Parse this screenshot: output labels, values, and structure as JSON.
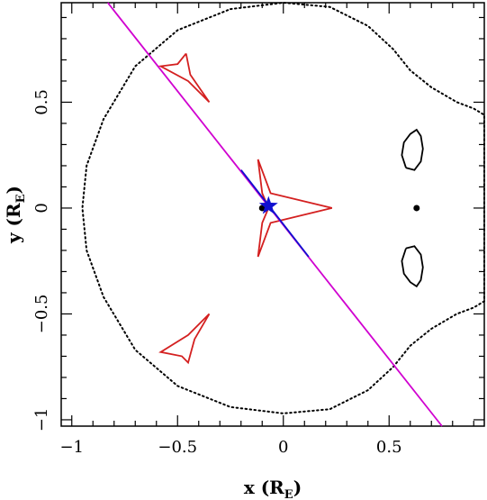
{
  "chart_data": {
    "type": "scatter",
    "title": "",
    "xlabel": {
      "main": "x (R",
      "sub": "E",
      "close": ")"
    },
    "ylabel": {
      "main": "y (R",
      "sub": "E",
      "close": ")"
    },
    "xlim": [
      -1.05,
      0.95
    ],
    "ylim": [
      -1.03,
      0.97
    ],
    "x_ticks": [
      {
        "value": -1,
        "label": "−1"
      },
      {
        "value": -0.5,
        "label": "−0.5"
      },
      {
        "value": 0,
        "label": "0"
      },
      {
        "value": 0.5,
        "label": "0.5"
      }
    ],
    "y_ticks": [
      {
        "value": -1,
        "label": "−1"
      },
      {
        "value": -0.5,
        "label": "−0.5"
      },
      {
        "value": 0,
        "label": "0"
      },
      {
        "value": 0.5,
        "label": "0.5"
      }
    ],
    "grid": false,
    "colors": {
      "axes": "#000000",
      "critical_curve": "#000000",
      "caustic": "#d42020",
      "trajectory": "#d000d0",
      "trajectory_segment": "#1010d0",
      "marker": "#1010d0",
      "lens": "#000000"
    },
    "series": [
      {
        "kind": "critical-curve-outer",
        "style": "dotted",
        "points": [
          [
            -0.25,
            0.94
          ],
          [
            0.0,
            0.97
          ],
          [
            0.22,
            0.95
          ],
          [
            0.4,
            0.86
          ],
          [
            0.52,
            0.75
          ],
          [
            0.6,
            0.65
          ],
          [
            0.7,
            0.57
          ],
          [
            0.82,
            0.5
          ],
          [
            0.9,
            0.47
          ],
          [
            0.95,
            0.44
          ],
          [
            0.95,
            -0.44
          ],
          [
            0.9,
            -0.47
          ],
          [
            0.82,
            -0.5
          ],
          [
            0.7,
            -0.57
          ],
          [
            0.6,
            -0.65
          ],
          [
            0.52,
            -0.75
          ],
          [
            0.4,
            -0.86
          ],
          [
            0.22,
            -0.95
          ],
          [
            0.0,
            -0.97
          ],
          [
            -0.25,
            -0.94
          ],
          [
            -0.5,
            -0.84
          ],
          [
            -0.7,
            -0.67
          ],
          [
            -0.85,
            -0.42
          ],
          [
            -0.93,
            -0.2
          ],
          [
            -0.95,
            0.0
          ],
          [
            -0.93,
            0.2
          ],
          [
            -0.85,
            0.42
          ],
          [
            -0.7,
            0.67
          ],
          [
            -0.5,
            0.84
          ],
          [
            -0.25,
            0.94
          ]
        ]
      },
      {
        "kind": "critical-curve-upper",
        "style": "solid",
        "points": [
          [
            0.58,
            0.19
          ],
          [
            0.56,
            0.25
          ],
          [
            0.57,
            0.31
          ],
          [
            0.6,
            0.35
          ],
          [
            0.63,
            0.37
          ],
          [
            0.65,
            0.34
          ],
          [
            0.66,
            0.28
          ],
          [
            0.65,
            0.22
          ],
          [
            0.62,
            0.18
          ],
          [
            0.58,
            0.19
          ]
        ]
      },
      {
        "kind": "critical-curve-lower",
        "style": "solid",
        "points": [
          [
            0.58,
            -0.19
          ],
          [
            0.56,
            -0.25
          ],
          [
            0.57,
            -0.31
          ],
          [
            0.6,
            -0.35
          ],
          [
            0.63,
            -0.37
          ],
          [
            0.65,
            -0.34
          ],
          [
            0.66,
            -0.28
          ],
          [
            0.65,
            -0.22
          ],
          [
            0.62,
            -0.18
          ],
          [
            0.58,
            -0.19
          ]
        ]
      },
      {
        "kind": "caustic-central",
        "style": "solid",
        "points": [
          [
            -0.12,
            0.23
          ],
          [
            -0.06,
            0.07
          ],
          [
            0.23,
            0.0
          ],
          [
            -0.06,
            -0.07
          ],
          [
            -0.12,
            -0.23
          ],
          [
            -0.1,
            -0.07
          ],
          [
            -0.07,
            0.0
          ],
          [
            -0.1,
            0.07
          ],
          [
            -0.12,
            0.23
          ]
        ]
      },
      {
        "kind": "caustic-upper",
        "style": "solid",
        "points": [
          [
            -0.46,
            0.73
          ],
          [
            -0.44,
            0.63
          ],
          [
            -0.35,
            0.5
          ],
          [
            -0.45,
            0.6
          ],
          [
            -0.58,
            0.67
          ],
          [
            -0.5,
            0.68
          ],
          [
            -0.46,
            0.73
          ]
        ]
      },
      {
        "kind": "caustic-lower",
        "style": "solid",
        "points": [
          [
            -0.35,
            -0.5
          ],
          [
            -0.42,
            -0.62
          ],
          [
            -0.45,
            -0.73
          ],
          [
            -0.48,
            -0.7
          ],
          [
            -0.58,
            -0.68
          ],
          [
            -0.45,
            -0.6
          ],
          [
            -0.35,
            -0.5
          ]
        ]
      },
      {
        "kind": "source-trajectory",
        "style": "solid",
        "points": [
          [
            -0.83,
            0.97
          ],
          [
            0.75,
            -1.03
          ]
        ]
      },
      {
        "kind": "source-trajectory-segment",
        "style": "solid",
        "points": [
          [
            -0.2,
            0.18
          ],
          [
            0.12,
            -0.23
          ]
        ]
      }
    ],
    "lens_positions": [
      {
        "x": -0.1,
        "y": 0.0
      },
      {
        "x": 0.63,
        "y": 0.0
      }
    ],
    "marker": {
      "shape": "star",
      "x": -0.07,
      "y": 0.01
    }
  }
}
